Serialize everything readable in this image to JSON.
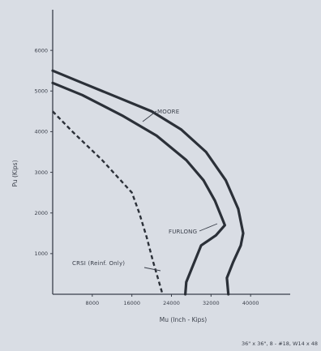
{
  "chart_data": {
    "type": "line",
    "xlabel": "Mu (Inch - Kips)",
    "ylabel": "Pu (Kips)",
    "xlim": [
      0,
      48000
    ],
    "ylim": [
      0,
      7000
    ],
    "xticks": [
      8000,
      16000,
      24000,
      32000,
      40000
    ],
    "yticks": [
      1000,
      2000,
      3000,
      4000,
      5000,
      6000
    ],
    "grid": false,
    "series": [
      {
        "name": "MOORE",
        "line_style": "solid",
        "x": [
          0,
          6000,
          14000,
          20000,
          26000,
          31000,
          35000,
          37500,
          38500,
          38000,
          36500,
          35200,
          35500
        ],
        "y": [
          5500,
          5200,
          4800,
          4500,
          4050,
          3500,
          2800,
          2100,
          1500,
          1200,
          800,
          400,
          0
        ]
      },
      {
        "name": "FURLONG",
        "line_style": "solid",
        "x": [
          0,
          6000,
          14000,
          21000,
          27000,
          30500,
          32800,
          34800,
          33000,
          30000,
          28000,
          27000,
          26800
        ],
        "y": [
          5200,
          4900,
          4400,
          3900,
          3300,
          2800,
          2300,
          1700,
          1450,
          1200,
          600,
          300,
          0
        ]
      },
      {
        "name": "CRSI (Reinf. Only)",
        "line_style": "dashed",
        "x": [
          0,
          4000,
          10000,
          16000,
          17500,
          19000,
          20300,
          21500,
          22200
        ],
        "y": [
          4500,
          4000,
          3300,
          2500,
          2000,
          1400,
          800,
          300,
          0
        ]
      }
    ],
    "annotations": {
      "moore": "MOORE",
      "furlong": "FURLONG",
      "crsi": "CRSI (Reinf. Only)"
    },
    "caption": "36\" x 36\", 8 - #18, W14 x 48"
  }
}
